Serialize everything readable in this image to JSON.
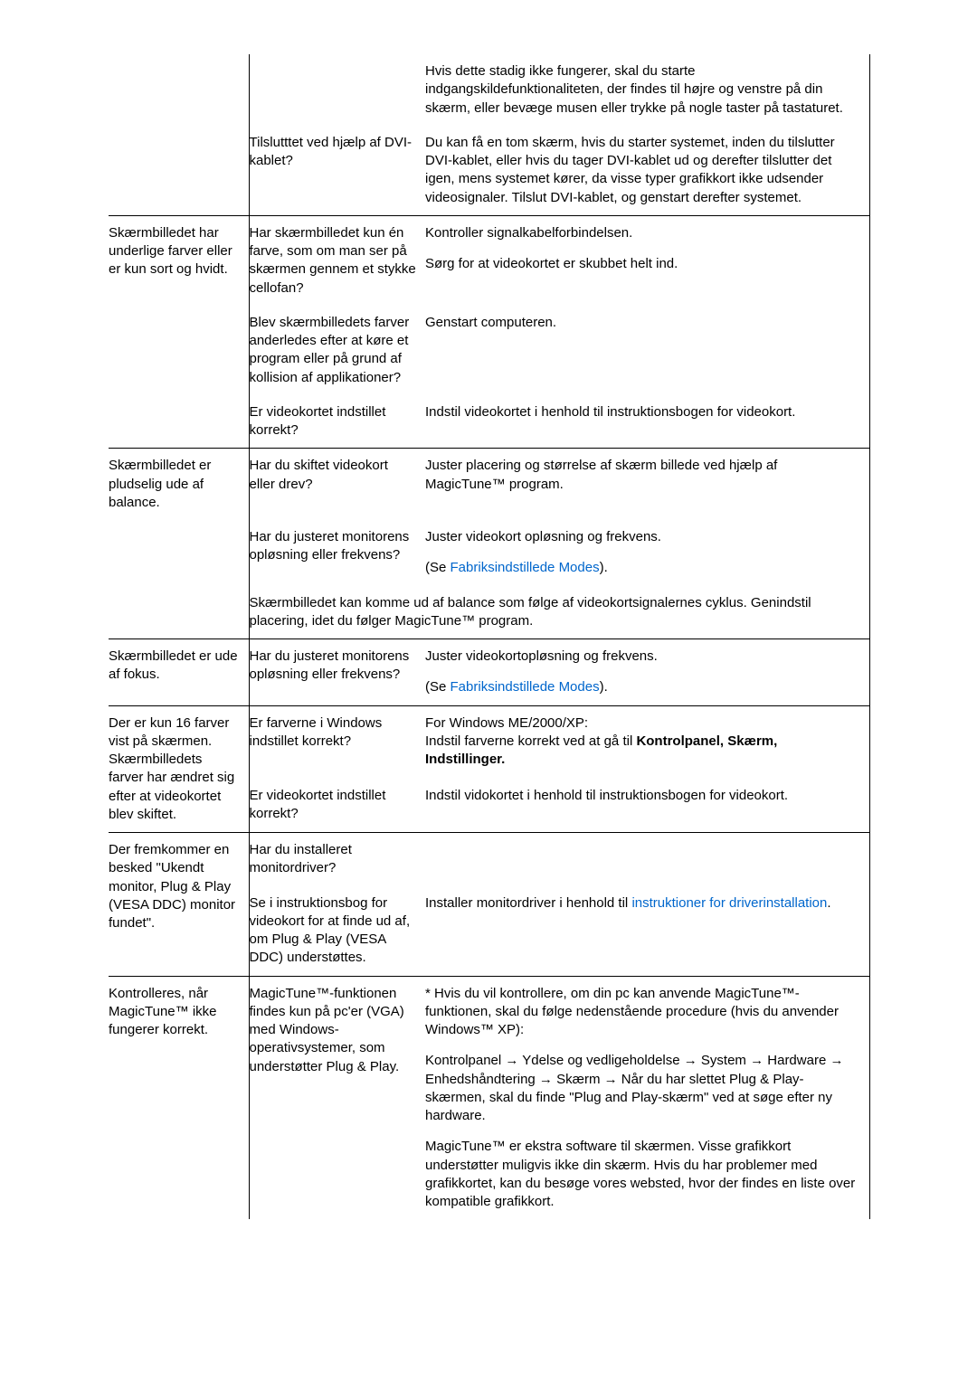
{
  "rows": [
    {
      "c1": "",
      "c2": "",
      "c3": [
        {
          "t": "text",
          "v": "Hvis dette stadig ikke fungerer, skal du starte indgangskildefunktionaliteten, der findes til højre og venstre på din skærm, eller bevæge musen eller trykke på nogle taster på tastaturet."
        }
      ],
      "c1_vr": true,
      "c3_vr": true
    },
    {
      "c1": "",
      "c2": "Tilslutttet ved hjælp af DVI-kablet?",
      "c3": [
        {
          "t": "text",
          "v": "Du kan få en tom skærm, hvis du starter systemet, inden du tilslutter DVI-kablet, eller hvis du tager DVI-kablet ud og derefter tilslutter det igen, mens systemet kører, da visse typer grafikkort ikke udsender videosignaler. Tilslut DVI-kablet, og genstart derefter systemet."
        }
      ],
      "c1_vr": true,
      "c3_vr": true
    },
    {
      "c1": "Skærmbilledet har underlige farver eller er kun sort og hvidt.",
      "c2": "Har skærmbilledet kun én farve, som om man ser på skærmen gennem et stykke cellofan?",
      "c3": [
        {
          "t": "text",
          "v": "Kontroller signalkabelforbindelsen."
        },
        {
          "t": "text",
          "v": "Sørg for at videokortet er skubbet helt ind."
        }
      ],
      "hr": true,
      "c1_vr": true,
      "c3_vr": true
    },
    {
      "c1": "",
      "c2": "Blev skærmbilledets farver anderledes efter at køre et program eller på grund af kollision af applikationer?",
      "c3": [
        {
          "t": "text",
          "v": "Genstart computeren."
        }
      ],
      "c1_vr": true,
      "c3_vr": true
    },
    {
      "c1": "",
      "c2": "Er videokortet indstillet korrekt?",
      "c3": [
        {
          "t": "text",
          "v": "Indstil videokortet i henhold til instruktionsbogen for videokort."
        }
      ],
      "c1_vr": true,
      "c3_vr": true
    },
    {
      "c1": "Skærmbilledet er pludselig ude af balance.",
      "c2": "Har du skiftet videokort eller drev?",
      "c3": [
        {
          "t": "text",
          "v": "Juster placering og størrelse af skærm billede ved hjælp af MagicTune™ program."
        }
      ],
      "hr": true,
      "c1_vr": true,
      "c3_vr": true
    },
    {
      "c1": "",
      "c2": "Har du justeret monitorens opløsning eller frekvens?",
      "c3": [
        {
          "t": "text",
          "v": "Juster videokort opløsning og frekvens."
        },
        {
          "t": "mixed",
          "parts": [
            {
              "t": "text",
              "v": "(Se "
            },
            {
              "t": "link",
              "v": "Fabriksindstillede Modes"
            },
            {
              "t": "text",
              "v": ")."
            }
          ]
        }
      ],
      "c1_vr": true,
      "c3_vr": true
    },
    {
      "c1": "",
      "span23": true,
      "c2": "Skærmbilledet kan komme ud af balance som følge af videokortsignalernes cyklus. Genindstil placering, idet du følger MagicTune™ program.",
      "c1_vr": true,
      "c3_vr": true
    },
    {
      "c1": "Skærmbilledet er ude af fokus.",
      "c2": "Har du justeret monitorens opløsning eller frekvens?",
      "c3": [
        {
          "t": "text",
          "v": "Juster videokortopløsning og frekvens."
        },
        {
          "t": "mixed",
          "parts": [
            {
              "t": "text",
              "v": "(Se "
            },
            {
              "t": "link",
              "v": "Fabriksindstillede Modes"
            },
            {
              "t": "text",
              "v": ")."
            }
          ]
        }
      ],
      "hr": true,
      "c1_vr": true,
      "c3_vr": true
    },
    {
      "c1": "Der er kun 16 farver vist på skærmen. Skærmbilledets farver har ændret sig efter at videokortet blev skiftet.",
      "c2": "Er farverne i Windows indstillet korrekt?",
      "c3": [
        {
          "t": "mixed",
          "parts": [
            {
              "t": "text",
              "v": "For Windows ME/2000/XP:\nIndstil farverne korrekt ved at gå til "
            },
            {
              "t": "bold",
              "v": "Kontrolpanel, Skærm, Indstillinger."
            }
          ]
        }
      ],
      "hr": true,
      "c1_vr": true,
      "c3_vr": true,
      "c1_rowspan": 2
    },
    {
      "c1": null,
      "c2": "Er videokortet indstillet korrekt?",
      "c3": [
        {
          "t": "text",
          "v": "Indstil vidokortet i henhold til instruktionsbogen for videokort."
        }
      ],
      "c1_vr": true,
      "c3_vr": true
    },
    {
      "c1": "Der fremkommer en besked \"Ukendt monitor, Plug & Play (VESA DDC) monitor fundet\".",
      "c2": "Har du installeret monitordriver?",
      "c3": [],
      "hr": true,
      "c1_vr": true,
      "c3_vr": true,
      "c1_rowspan": 2
    },
    {
      "c1": null,
      "c2": "Se i instruktionsbog for videokort for at finde ud af, om Plug & Play (VESA DDC) understøttes.",
      "c3": [
        {
          "t": "mixed",
          "parts": [
            {
              "t": "text",
              "v": "Installer monitordriver i henhold til "
            },
            {
              "t": "link",
              "v": "instruktioner for driverinstallation"
            },
            {
              "t": "text",
              "v": "."
            }
          ]
        }
      ],
      "c1_vr": true,
      "c3_vr": true
    },
    {
      "c1": "Kontrolleres, når MagicTune™ ikke fungerer korrekt.",
      "c2": "MagicTune™-funktionen findes kun på pc'er (VGA) med Windows-operativsystemer, som understøtter Plug & Play.",
      "c3": [
        {
          "t": "text",
          "v": "* Hvis du vil kontrollere, om din pc kan anvende MagicTune™-funktionen, skal du følge nedenstående procedure (hvis du anvender Windows™ XP):"
        },
        {
          "t": "text",
          "v": "Kontrolpanel → Ydelse og vedligeholdelse → System → Hardware → Enhedshåndtering → Skærm → Når du har slettet Plug & Play-skærmen, skal du finde \"Plug and Play-skærm\" ved at søge efter ny hardware."
        },
        {
          "t": "text",
          "v": "MagicTune™ er ekstra software til skærmen. Visse grafikkort understøtter muligvis ikke din skærm. Hvis du har problemer med grafikkortet, kan du besøge vores websted, hvor der findes en liste over kompatible grafikkort."
        }
      ],
      "hr": true,
      "c1_vr": true,
      "c3_vr": true
    }
  ]
}
